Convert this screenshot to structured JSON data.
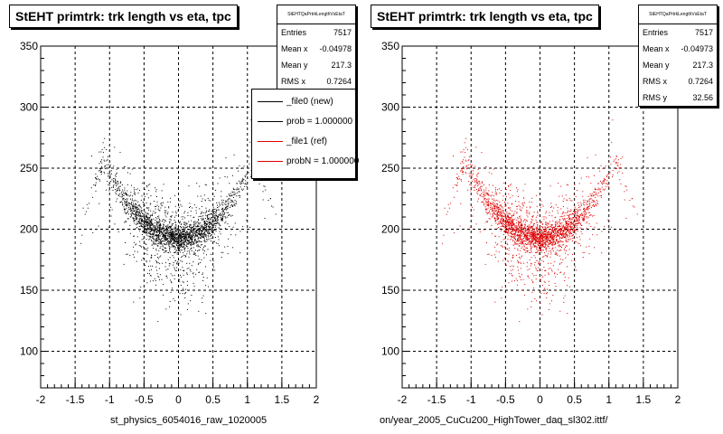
{
  "chart_data": [
    {
      "type": "scatter",
      "title": "StEHT primtrk: trk length vs eta, tpc",
      "xlabel": "st_physics_6054016_raw_1020005",
      "ylabel": "",
      "xlim": [
        -2,
        2
      ],
      "ylim": [
        70,
        350
      ],
      "xticks": [
        "-2",
        "-1.5",
        "-1",
        "-0.5",
        "0",
        "0.5",
        "1",
        "1.5",
        "2"
      ],
      "yticks": [
        "100",
        "150",
        "200",
        "250",
        "300",
        "350"
      ],
      "grid": true,
      "marker_color": "#000000",
      "stats": {
        "header": "StEHTQaPrtrkLengthVsEtaT",
        "entries_label": "Entries",
        "entries": "7517",
        "meanx_label": "Mean x",
        "meanx": "-0.04978",
        "meany_label": "Mean y",
        "meany": "217.3",
        "rmsx_label": "RMS x",
        "rmsx": "0.7264"
      },
      "legend": [
        {
          "label": "_file0 (new)",
          "color": "#000000"
        },
        {
          "label": "prob = 1.000000",
          "color": "#000000"
        },
        {
          "label": "_file1 (ref)",
          "color": "#e00000"
        },
        {
          "label": "probN = 1.000000",
          "color": "#e00000"
        }
      ],
      "distribution": {
        "n_points": 7517,
        "description": "U-shaped band; track length ~195 at eta 0 rising to ~250-300 at |eta| ~1",
        "core_points": [
          [
            -1.3,
            215
          ],
          [
            -1.0,
            250
          ],
          [
            -0.75,
            235
          ],
          [
            -0.5,
            220
          ],
          [
            -0.25,
            202
          ],
          [
            0,
            195
          ],
          [
            0.25,
            200
          ],
          [
            0.5,
            215
          ],
          [
            0.75,
            230
          ],
          [
            1.0,
            250
          ],
          [
            1.25,
            275
          ]
        ]
      }
    },
    {
      "type": "scatter",
      "title": "StEHT primtrk: trk length vs eta, tpc",
      "xlabel": "on/year_2005_CuCu200_HighTower_daq_sl302.ittf/",
      "ylabel": "",
      "xlim": [
        -2,
        2
      ],
      "ylim": [
        70,
        350
      ],
      "xticks": [
        "-2",
        "-1.5",
        "-1",
        "-0.5",
        "0",
        "0.5",
        "1",
        "1.5",
        "2"
      ],
      "yticks": [
        "100",
        "150",
        "200",
        "250",
        "300",
        "350"
      ],
      "grid": true,
      "marker_color": "#e00000",
      "stats": {
        "header": "StEHTQaPrtrkLengthVsEtaT",
        "entries_label": "Entries",
        "entries": "7517",
        "meanx_label": "Mean x",
        "meanx": "-0.04973",
        "meany_label": "Mean y",
        "meany": "217.3",
        "rmsx_label": "RMS x",
        "rmsx": "0.7264",
        "rmsy_label": "RMS y",
        "rmsy": "32.56"
      },
      "distribution": {
        "n_points": 7517,
        "description": "U-shaped band; track length ~195 at eta 0 rising to ~250-300 at |eta| ~1",
        "core_points": [
          [
            -1.3,
            215
          ],
          [
            -1.0,
            250
          ],
          [
            -0.75,
            235
          ],
          [
            -0.5,
            220
          ],
          [
            -0.25,
            202
          ],
          [
            0,
            195
          ],
          [
            0.25,
            200
          ],
          [
            0.5,
            215
          ],
          [
            0.75,
            230
          ],
          [
            1.0,
            250
          ],
          [
            1.25,
            275
          ]
        ]
      }
    }
  ]
}
